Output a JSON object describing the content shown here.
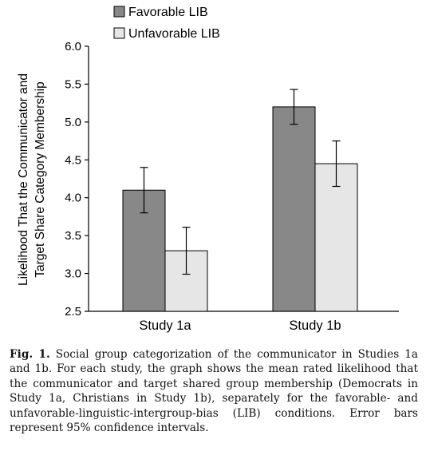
{
  "chart_data": {
    "type": "bar",
    "categories": [
      "Study 1a",
      "Study 1b"
    ],
    "series": [
      {
        "name": "Favorable LIB",
        "color": "#888888",
        "values": [
          4.1,
          5.2
        ],
        "ci_low": [
          3.8,
          4.97
        ],
        "ci_high": [
          4.4,
          5.43
        ]
      },
      {
        "name": "Unfavorable LIB",
        "color": "#e6e6e6",
        "values": [
          3.3,
          4.45
        ],
        "ci_low": [
          2.99,
          4.15
        ],
        "ci_high": [
          3.61,
          4.75
        ]
      }
    ],
    "ylabel_lines": [
      "Likelihood That the Communicator and",
      "Target Share Category Membership"
    ],
    "ylim": [
      2.5,
      6.0
    ],
    "yticks": [
      "2.5",
      "3.0",
      "3.5",
      "4.0",
      "4.5",
      "5.0",
      "5.5",
      "6.0"
    ],
    "grid": false,
    "legend_position": "top-left"
  },
  "caption": {
    "label": "Fig. 1.",
    "text": "Social group categorization of the communicator in Studies 1a and 1b. For each study, the graph shows the mean rated likelihood that the communicator and target shared group membership (Democrats in Study 1a, Christians in Study 1b), separately for the favorable- and unfavorable-linguistic-intergroup-bias (LIB) conditions. Error bars represent 95% confidence intervals."
  }
}
